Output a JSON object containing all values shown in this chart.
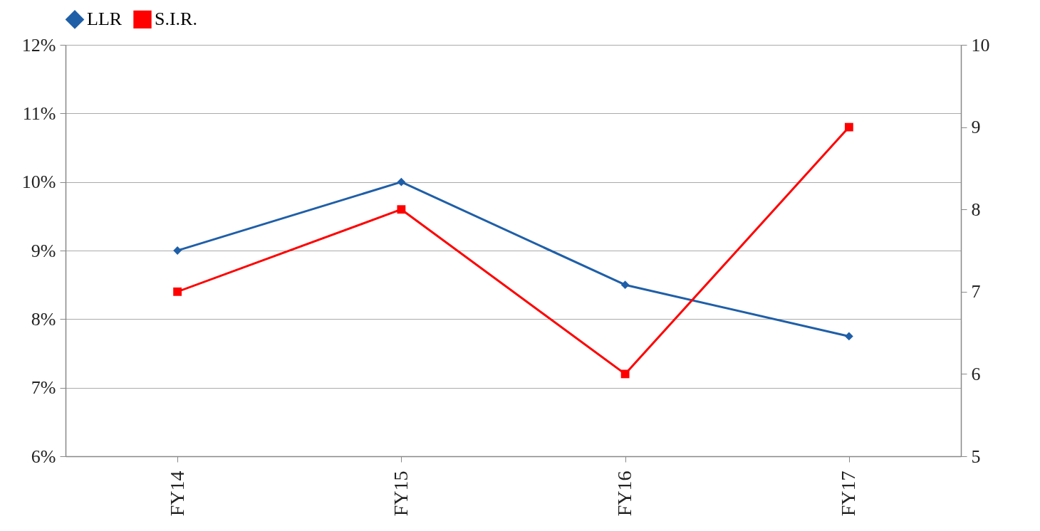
{
  "chart_data": {
    "type": "line",
    "categories": [
      "FY14",
      "FY15",
      "FY16",
      "FY17"
    ],
    "series": [
      {
        "name": "LLR",
        "color": "#1f5fa8",
        "values": [
          9,
          10,
          8.5,
          7.75
        ],
        "marker": "diamond"
      },
      {
        "name": "S.I.R.",
        "color": "#ff0000",
        "values": [
          7,
          8,
          6,
          9
        ],
        "marker": "square",
        "axis": "y2"
      }
    ],
    "ylim": [
      6,
      12
    ],
    "yticks": [
      {
        "value": 6,
        "label": "6%"
      },
      {
        "value": 7,
        "label": "7%"
      },
      {
        "value": 8,
        "label": "8%"
      },
      {
        "value": 9,
        "label": "9%"
      },
      {
        "value": 10,
        "label": "10%"
      },
      {
        "value": 11,
        "label": "11%"
      },
      {
        "value": 12,
        "label": "12%"
      }
    ],
    "y2lim": [
      5,
      10
    ],
    "y2ticks": [
      5,
      6,
      7,
      8,
      9,
      10
    ],
    "grid": "y",
    "legend": "top"
  }
}
